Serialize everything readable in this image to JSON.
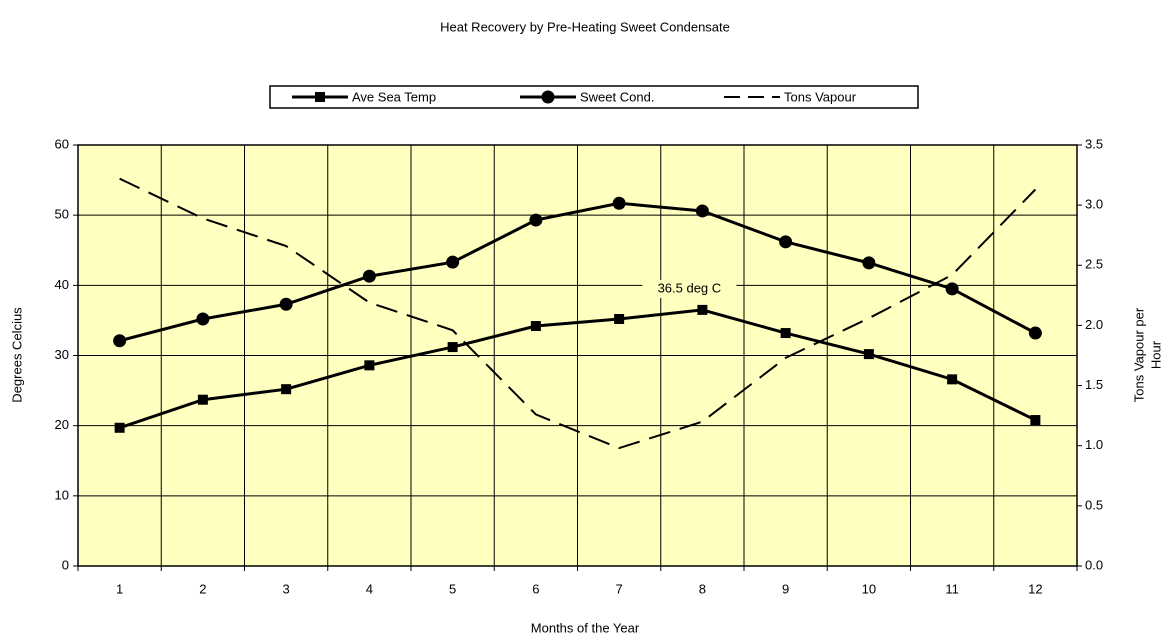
{
  "chart_data": {
    "type": "line",
    "title": "Heat Recovery by Pre-Heating  Sweet Condensate",
    "xlabel": "Months of the Year",
    "ylabel": "Degrees Celcius",
    "y2label": [
      "Tons Vapour per",
      "Hour"
    ],
    "annotation": "36.5 deg C",
    "categories": [
      "1",
      "2",
      "3",
      "4",
      "5",
      "6",
      "7",
      "8",
      "9",
      "10",
      "11",
      "12"
    ],
    "series": [
      {
        "name": "Ave Sea Temp",
        "color": "#000000",
        "marker": "square",
        "dash": false,
        "values": [
          19.7,
          23.7,
          25.2,
          28.6,
          31.2,
          34.2,
          35.2,
          36.5,
          33.2,
          30.2,
          26.6,
          20.8
        ]
      },
      {
        "name": "Sweet Cond.",
        "color": "#000000",
        "marker": "circle",
        "dash": false,
        "values": [
          32.1,
          35.2,
          37.3,
          41.3,
          43.3,
          49.3,
          51.7,
          50.6,
          46.2,
          43.2,
          39.5,
          33.2
        ]
      },
      {
        "name": "Tons Vapour",
        "color": "#000000",
        "marker": null,
        "dash": true,
        "axis": "y2",
        "values": [
          3.22,
          2.89,
          2.66,
          2.19,
          1.96,
          1.26,
          0.98,
          1.2,
          1.73,
          2.06,
          2.42,
          3.13
        ]
      }
    ],
    "ylim": [
      0,
      60
    ],
    "yticks": [
      0,
      10,
      20,
      30,
      40,
      50,
      60
    ],
    "y2lim": [
      0,
      3.5
    ],
    "y2ticks": [
      {
        "value": 0,
        "label": "0.0"
      },
      0.5,
      {
        "value": 1,
        "label": "1.0"
      },
      1.5,
      {
        "value": 2,
        "label": "2.0"
      },
      2.5,
      {
        "value": 3,
        "label": "3.0"
      },
      3.5
    ],
    "grid": true,
    "plot_background": "#ffffc0",
    "legend_position": "top"
  }
}
